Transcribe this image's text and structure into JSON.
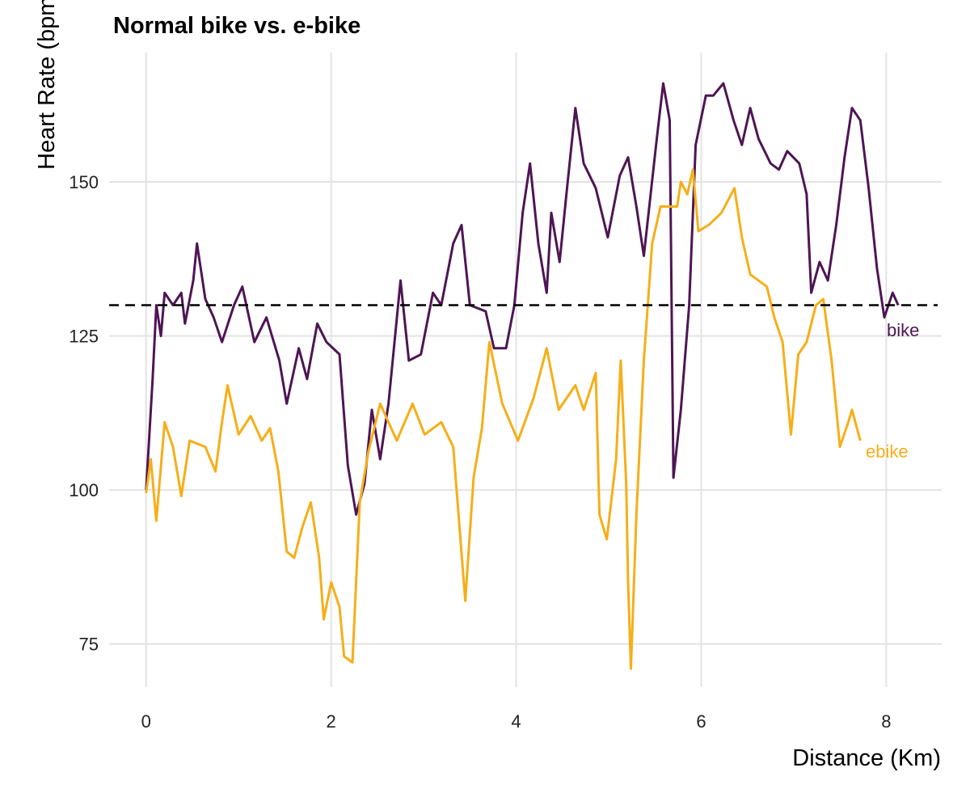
{
  "chart_data": {
    "type": "line",
    "title": "Normal bike vs. e-bike",
    "xlabel": "Distance (Km)",
    "ylabel": "Heart Rate (bpm)",
    "xlim": [
      -0.4,
      8.6
    ],
    "ylim": [
      68,
      171
    ],
    "xticks": [
      0,
      2,
      4,
      6,
      8
    ],
    "yticks": [
      75,
      100,
      125,
      150
    ],
    "grid": true,
    "reference_line": {
      "y": 130,
      "style": "dashed",
      "color": "#000000"
    },
    "series": [
      {
        "name": "bike",
        "color": "#4e1554",
        "x": [
          0,
          0.07,
          0.11,
          0.16,
          0.2,
          0.29,
          0.38,
          0.42,
          0.51,
          0.55,
          0.64,
          0.73,
          0.82,
          0.95,
          1.04,
          1.17,
          1.3,
          1.44,
          1.52,
          1.65,
          1.74,
          1.85,
          1.95,
          2.09,
          2.18,
          2.27,
          2.36,
          2.44,
          2.53,
          2.62,
          2.75,
          2.84,
          2.97,
          3.1,
          3.19,
          3.32,
          3.41,
          3.5,
          3.67,
          3.76,
          3.89,
          3.98,
          4.07,
          4.15,
          4.24,
          4.33,
          4.38,
          4.47,
          4.55,
          4.64,
          4.73,
          4.86,
          4.99,
          5.12,
          5.21,
          5.3,
          5.38,
          5.52,
          5.59,
          5.66,
          5.7,
          5.78,
          5.87,
          5.94,
          6.05,
          6.13,
          6.24,
          6.35,
          6.44,
          6.53,
          6.62,
          6.75,
          6.84,
          6.93,
          7.06,
          7.14,
          7.19,
          7.28,
          7.37,
          7.46,
          7.55,
          7.63,
          7.72,
          7.81,
          7.9,
          7.98,
          8.07,
          8.13
        ],
        "y": [
          100,
          118,
          130,
          125,
          132,
          130,
          132,
          127,
          134,
          140,
          131,
          128,
          124,
          130,
          133,
          124,
          128,
          121,
          114,
          123,
          118,
          127,
          124,
          122,
          104,
          96,
          101,
          113,
          105,
          114,
          134,
          121,
          122,
          132,
          130,
          140,
          143,
          130,
          129,
          123,
          123,
          130,
          145,
          153,
          140,
          132,
          145,
          137,
          149,
          162,
          153,
          149,
          141,
          151,
          154,
          146,
          138,
          157,
          166,
          160,
          102,
          113,
          130,
          156,
          164,
          164,
          166,
          160,
          156,
          162,
          157,
          153,
          152,
          155,
          153,
          148,
          132,
          137,
          134,
          143,
          154,
          162,
          160,
          149,
          136,
          128,
          132,
          130
        ]
      },
      {
        "name": "ebike",
        "color": "#f6ae18",
        "x": [
          0,
          0.05,
          0.11,
          0.2,
          0.29,
          0.38,
          0.47,
          0.64,
          0.75,
          0.82,
          0.88,
          1.0,
          1.13,
          1.25,
          1.34,
          1.43,
          1.52,
          1.6,
          1.69,
          1.78,
          1.87,
          1.92,
          2.0,
          2.09,
          2.14,
          2.23,
          2.31,
          2.4,
          2.53,
          2.71,
          2.88,
          3.01,
          3.19,
          3.32,
          3.45,
          3.54,
          3.63,
          3.71,
          3.85,
          4.02,
          4.19,
          4.33,
          4.46,
          4.64,
          4.73,
          4.86,
          4.9,
          4.98,
          5.08,
          5.13,
          5.19,
          5.21,
          5.24,
          5.3,
          5.38,
          5.47,
          5.56,
          5.74,
          5.78,
          5.85,
          5.91,
          5.97,
          6.08,
          6.22,
          6.36,
          6.44,
          6.53,
          6.71,
          6.79,
          6.88,
          6.97,
          7.05,
          7.14,
          7.24,
          7.32,
          7.41,
          7.5,
          7.59,
          7.63,
          7.72
        ],
        "y": [
          99.5,
          105,
          95,
          111,
          107,
          99,
          108,
          107,
          103,
          111,
          117,
          109,
          112,
          108,
          110,
          103,
          90,
          89,
          94,
          98,
          89,
          79,
          85,
          81,
          73,
          72,
          98,
          106,
          114,
          108,
          114,
          109,
          111,
          107,
          82,
          102,
          110,
          124,
          114,
          108,
          115,
          123,
          113,
          117,
          113,
          119,
          96,
          92,
          105,
          121,
          101,
          85,
          71,
          96,
          121,
          140,
          146,
          146,
          150,
          148,
          152,
          142,
          143,
          145,
          149,
          141,
          135,
          133,
          128,
          124,
          109,
          122,
          124,
          130,
          131,
          121,
          107,
          111,
          113,
          108
        ]
      }
    ]
  }
}
